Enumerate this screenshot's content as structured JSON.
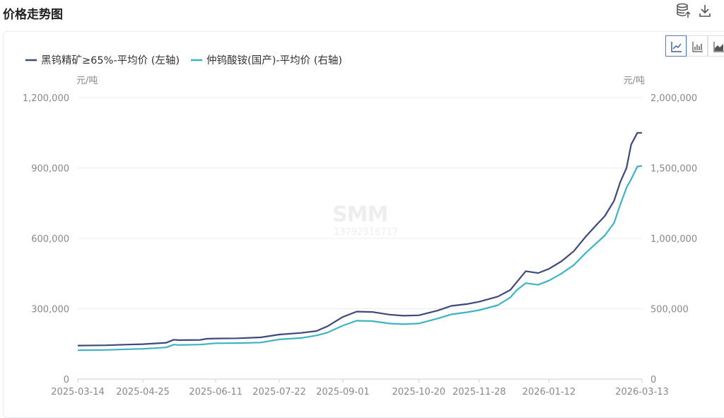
{
  "page": {
    "title": "价格走势图"
  },
  "toolbar": {
    "icons": [
      "database-upload-icon",
      "download-icon"
    ]
  },
  "chart_type_buttons": [
    {
      "icon": "line-chart-icon",
      "active": true
    },
    {
      "icon": "bar-chart-icon",
      "active": false
    },
    {
      "icon": "area-chart-icon",
      "active": false
    }
  ],
  "watermark": {
    "logo": "SMM",
    "text": "13792516717"
  },
  "colors": {
    "series1": "#3d4a7a",
    "series2": "#3fb3c2",
    "grid": "#ececec",
    "axis_text": "#888888"
  },
  "chart_data": {
    "type": "line",
    "title": "",
    "legend_position": "top-left",
    "grid": true,
    "x_ticks": [
      "2025-03-14",
      "2025-04-25",
      "2025-06-11",
      "2025-07-22",
      "2025-09-01",
      "2025-10-20",
      "2025-11-28",
      "2026-01-12",
      "2026-03-13"
    ],
    "y_left": {
      "unit": "元/吨",
      "range": [
        0,
        1200000
      ],
      "ticks": [
        0,
        300000,
        600000,
        900000,
        1200000
      ]
    },
    "y_right": {
      "unit": "元/吨",
      "range": [
        0,
        2000000
      ],
      "ticks": [
        0,
        500000,
        1000000,
        1500000,
        2000000
      ]
    },
    "series": [
      {
        "name": "黑钨精矿≥65%-平均价 (左轴)",
        "axis": "left",
        "points": [
          [
            "2025-03-14",
            143000
          ],
          [
            "2025-04-01",
            144000
          ],
          [
            "2025-04-15",
            147000
          ],
          [
            "2025-04-25",
            149000
          ],
          [
            "2025-05-10",
            155000
          ],
          [
            "2025-05-15",
            168000
          ],
          [
            "2025-05-18",
            166000
          ],
          [
            "2025-06-01",
            167000
          ],
          [
            "2025-06-05",
            172000
          ],
          [
            "2025-06-11",
            173000
          ],
          [
            "2025-06-25",
            174000
          ],
          [
            "2025-07-10",
            178000
          ],
          [
            "2025-07-22",
            190000
          ],
          [
            "2025-08-05",
            197000
          ],
          [
            "2025-08-15",
            205000
          ],
          [
            "2025-08-22",
            225000
          ],
          [
            "2025-09-01",
            265000
          ],
          [
            "2025-09-10",
            288000
          ],
          [
            "2025-09-20",
            286000
          ],
          [
            "2025-10-01",
            275000
          ],
          [
            "2025-10-10",
            270000
          ],
          [
            "2025-10-20",
            272000
          ],
          [
            "2025-11-01",
            292000
          ],
          [
            "2025-11-10",
            312000
          ],
          [
            "2025-11-20",
            320000
          ],
          [
            "2025-11-28",
            330000
          ],
          [
            "2025-12-10",
            352000
          ],
          [
            "2025-12-18",
            380000
          ],
          [
            "2025-12-22",
            412000
          ],
          [
            "2025-12-28",
            460000
          ],
          [
            "2026-01-05",
            452000
          ],
          [
            "2026-01-12",
            470000
          ],
          [
            "2026-01-20",
            502000
          ],
          [
            "2026-01-28",
            545000
          ],
          [
            "2026-02-05",
            610000
          ],
          [
            "2026-02-12",
            660000
          ],
          [
            "2026-02-17",
            695000
          ],
          [
            "2026-02-23",
            760000
          ],
          [
            "2026-02-27",
            840000
          ],
          [
            "2026-03-03",
            900000
          ],
          [
            "2026-03-06",
            1000000
          ],
          [
            "2026-03-10",
            1050000
          ],
          [
            "2026-03-13",
            1050000
          ]
        ]
      },
      {
        "name": "仲钨酸铵(国产)-平均价 (右轴)",
        "axis": "right",
        "points": [
          [
            "2025-03-14",
            205000
          ],
          [
            "2025-04-01",
            207000
          ],
          [
            "2025-04-15",
            212000
          ],
          [
            "2025-04-25",
            215000
          ],
          [
            "2025-05-10",
            225000
          ],
          [
            "2025-05-15",
            245000
          ],
          [
            "2025-05-18",
            242000
          ],
          [
            "2025-06-01",
            245000
          ],
          [
            "2025-06-11",
            255000
          ],
          [
            "2025-06-25",
            256000
          ],
          [
            "2025-07-10",
            260000
          ],
          [
            "2025-07-22",
            282000
          ],
          [
            "2025-08-05",
            292000
          ],
          [
            "2025-08-15",
            310000
          ],
          [
            "2025-08-22",
            330000
          ],
          [
            "2025-09-01",
            380000
          ],
          [
            "2025-09-10",
            415000
          ],
          [
            "2025-09-20",
            412000
          ],
          [
            "2025-10-01",
            395000
          ],
          [
            "2025-10-10",
            390000
          ],
          [
            "2025-10-20",
            395000
          ],
          [
            "2025-11-01",
            430000
          ],
          [
            "2025-11-10",
            460000
          ],
          [
            "2025-11-20",
            475000
          ],
          [
            "2025-11-28",
            490000
          ],
          [
            "2025-12-10",
            525000
          ],
          [
            "2025-12-18",
            580000
          ],
          [
            "2025-12-22",
            630000
          ],
          [
            "2025-12-28",
            682000
          ],
          [
            "2026-01-05",
            670000
          ],
          [
            "2026-01-12",
            700000
          ],
          [
            "2026-01-20",
            750000
          ],
          [
            "2026-01-28",
            810000
          ],
          [
            "2026-02-05",
            900000
          ],
          [
            "2026-02-12",
            970000
          ],
          [
            "2026-02-17",
            1020000
          ],
          [
            "2026-02-23",
            1110000
          ],
          [
            "2026-02-27",
            1240000
          ],
          [
            "2026-03-03",
            1360000
          ],
          [
            "2026-03-06",
            1420000
          ],
          [
            "2026-03-10",
            1510000
          ],
          [
            "2026-03-13",
            1515000
          ]
        ]
      }
    ]
  }
}
